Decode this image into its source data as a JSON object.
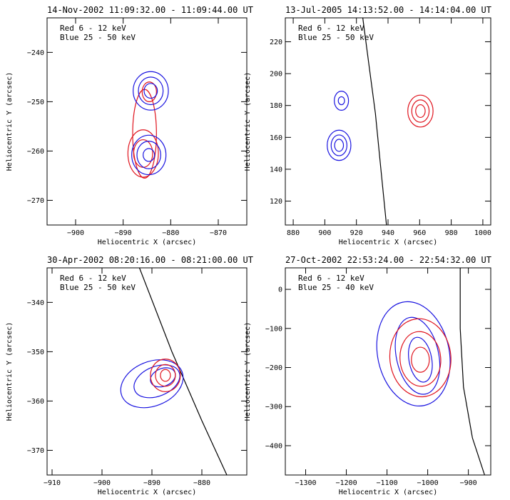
{
  "chart_data": [
    {
      "type": "contour",
      "title": "14-Nov-2002 11:09:32.00 - 11:09:44.00 UT",
      "xlabel": "Heliocentric X (arcsec)",
      "ylabel": "Heliocentric Y (arcsec)",
      "xlim": [
        -906,
        -864
      ],
      "ylim": [
        -275,
        -233
      ],
      "xticks": [
        -900,
        -890,
        -880,
        -870
      ],
      "yticks": [
        -270,
        -260,
        -250,
        -240
      ],
      "legend": [
        "Red 6 - 12 keV",
        "Blue 25 - 50 keV"
      ],
      "colors": {
        "red": "#e0141e",
        "blue": "#1a14e0",
        "limb": "#000000"
      },
      "limb": null,
      "contours": [
        {
          "color": "red",
          "cx": -885.5,
          "cy": -256.5,
          "rx": 2.5,
          "ry": 9.0
        },
        {
          "color": "red",
          "cx": -885.8,
          "cy": -260.5,
          "rx": 3.2,
          "ry": 4.8
        },
        {
          "color": "red",
          "cx": -885.8,
          "cy": -260.5,
          "rx": 2.0,
          "ry": 2.8
        },
        {
          "color": "red",
          "cx": -884.5,
          "cy": -248.0,
          "rx": 1.5,
          "ry": 2.0
        },
        {
          "color": "blue",
          "cx": -884.2,
          "cy": -247.8,
          "rx": 3.7,
          "ry": 3.9
        },
        {
          "color": "blue",
          "cx": -884.2,
          "cy": -247.8,
          "rx": 2.6,
          "ry": 2.8
        },
        {
          "color": "blue",
          "cx": -884.2,
          "cy": -247.8,
          "rx": 1.4,
          "ry": 1.5
        },
        {
          "color": "blue",
          "cx": -884.6,
          "cy": -260.8,
          "rx": 3.6,
          "ry": 4.0
        },
        {
          "color": "blue",
          "cx": -884.6,
          "cy": -260.8,
          "rx": 2.5,
          "ry": 2.8
        },
        {
          "color": "blue",
          "cx": -884.6,
          "cy": -260.8,
          "rx": 1.2,
          "ry": 1.3
        }
      ]
    },
    {
      "type": "contour",
      "title": "13-Jul-2005 14:13:52.00 - 14:14:04.00 UT",
      "xlabel": "Heliocentric X (arcsec)",
      "ylabel": "Heliocentric Y (arcsec)",
      "xlim": [
        875,
        1005
      ],
      "ylim": [
        105,
        235
      ],
      "xticks": [
        880,
        900,
        920,
        940,
        960,
        980,
        1000
      ],
      "yticks": [
        120,
        140,
        160,
        180,
        200,
        220
      ],
      "legend": [
        "Red 6 - 12 keV",
        "Blue 25 - 50 keV"
      ],
      "colors": {
        "red": "#e0141e",
        "blue": "#1a14e0",
        "limb": "#000000"
      },
      "limb": [
        [
          924,
          235
        ],
        [
          928,
          205
        ],
        [
          932,
          175
        ],
        [
          935,
          145
        ],
        [
          939,
          105
        ]
      ],
      "contours": [
        {
          "color": "blue",
          "cx": 910.5,
          "cy": 183.0,
          "rx": 4.5,
          "ry": 6.0
        },
        {
          "color": "blue",
          "cx": 910.5,
          "cy": 183.0,
          "rx": 2.0,
          "ry": 2.5
        },
        {
          "color": "blue",
          "cx": 909.0,
          "cy": 155.0,
          "rx": 7.5,
          "ry": 9.5
        },
        {
          "color": "blue",
          "cx": 909.0,
          "cy": 155.0,
          "rx": 5.0,
          "ry": 6.5
        },
        {
          "color": "blue",
          "cx": 909.0,
          "cy": 155.0,
          "rx": 2.8,
          "ry": 3.8
        },
        {
          "color": "red",
          "cx": 960.5,
          "cy": 176.5,
          "rx": 8.0,
          "ry": 10.0
        },
        {
          "color": "red",
          "cx": 960.5,
          "cy": 176.5,
          "rx": 5.5,
          "ry": 7.0
        },
        {
          "color": "red",
          "cx": 960.5,
          "cy": 176.5,
          "rx": 3.0,
          "ry": 4.0
        }
      ]
    },
    {
      "type": "contour",
      "title": "30-Apr-2002 08:20:16.00 - 08:21:00.00 UT",
      "xlabel": "Heliocentric X (arcsec)",
      "ylabel": "Heliocentric Y (arcsec)",
      "xlim": [
        -911,
        -871
      ],
      "ylim": [
        -375,
        -333
      ],
      "xticks": [
        -910,
        -900,
        -890,
        -880
      ],
      "yticks": [
        -370,
        -360,
        -350,
        -340
      ],
      "legend": [
        "Red 6 - 12 keV",
        "Blue 25 - 50 keV"
      ],
      "colors": {
        "red": "#e0141e",
        "blue": "#1a14e0",
        "limb": "#000000"
      },
      "limb": [
        [
          -892.5,
          -333
        ],
        [
          -886,
          -350
        ],
        [
          -880,
          -364
        ],
        [
          -875,
          -375
        ]
      ],
      "contours": [
        {
          "color": "blue",
          "cx": -890.0,
          "cy": -356.5,
          "rx": 6.5,
          "ry": 4.5,
          "rot": -22
        },
        {
          "color": "blue",
          "cx": -889.0,
          "cy": -356.0,
          "rx": 4.8,
          "ry": 3.0,
          "rot": -22
        },
        {
          "color": "blue",
          "cx": -887.8,
          "cy": -355.2,
          "rx": 2.6,
          "ry": 1.8,
          "rot": -22
        },
        {
          "color": "red",
          "cx": -887.3,
          "cy": -354.8,
          "rx": 3.0,
          "ry": 3.3
        },
        {
          "color": "red",
          "cx": -887.3,
          "cy": -354.8,
          "rx": 2.0,
          "ry": 2.2
        },
        {
          "color": "red",
          "cx": -887.3,
          "cy": -354.8,
          "rx": 1.0,
          "ry": 1.2
        }
      ]
    },
    {
      "type": "contour",
      "title": "27-Oct-2002 22:53:24.00 - 22:54:32.00 UT",
      "xlabel": "Heliocentric X (arcsec)",
      "ylabel": "Heliocentric Y (arcsec)",
      "xlim": [
        -1350,
        -845
      ],
      "ylim": [
        -475,
        55
      ],
      "xticks": [
        -1300,
        -1200,
        -1100,
        -1000,
        -900
      ],
      "yticks": [
        -400,
        -300,
        -200,
        -100,
        0
      ],
      "legend": [
        "Red 6 - 12 keV",
        "Blue 25 - 40 keV"
      ],
      "colors": {
        "red": "#e0141e",
        "blue": "#1a14e0",
        "limb": "#000000"
      },
      "limb": [
        [
          -920,
          55
        ],
        [
          -920,
          -100
        ],
        [
          -912,
          -250
        ],
        [
          -890,
          -380
        ],
        [
          -860,
          -475
        ]
      ],
      "contours": [
        {
          "color": "blue",
          "cx": -1035,
          "cy": -165,
          "rx": 88,
          "ry": 135,
          "rot": -12
        },
        {
          "color": "blue",
          "cx": -1025,
          "cy": -170,
          "rx": 52,
          "ry": 100,
          "rot": -12
        },
        {
          "color": "blue",
          "cx": -1018,
          "cy": -180,
          "rx": 28,
          "ry": 58,
          "rot": -10
        },
        {
          "color": "red",
          "cx": -1018,
          "cy": -175,
          "rx": 75,
          "ry": 100,
          "rot": -5
        },
        {
          "color": "red",
          "cx": -1018,
          "cy": -178,
          "rx": 50,
          "ry": 70,
          "rot": -5
        },
        {
          "color": "red",
          "cx": -1018,
          "cy": -180,
          "rx": 22,
          "ry": 32
        }
      ]
    }
  ]
}
